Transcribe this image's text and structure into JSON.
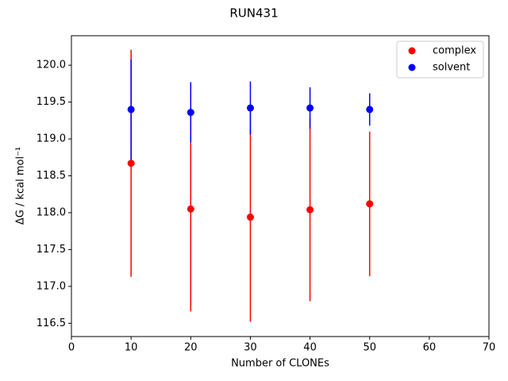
{
  "chart_data": {
    "type": "errorbar",
    "title": "RUN431",
    "xlabel": "Number of CLONEs",
    "ylabel": "ΔG / kcal mol⁻¹",
    "series": [
      {
        "name": "complex",
        "color": "#ff0000",
        "x": [
          10,
          20,
          30,
          40,
          50
        ],
        "values": [
          118.67,
          118.05,
          117.94,
          118.04,
          118.12
        ],
        "errors": [
          1.54,
          1.39,
          1.42,
          1.24,
          0.98
        ]
      },
      {
        "name": "solvent",
        "color": "#0000ff",
        "x": [
          10,
          20,
          30,
          40,
          50
        ],
        "values": [
          119.4,
          119.36,
          119.42,
          119.42,
          119.4
        ],
        "errors": [
          0.68,
          0.41,
          0.36,
          0.28,
          0.22
        ]
      }
    ],
    "xlim": [
      0,
      70
    ],
    "xticks": [
      0,
      10,
      20,
      30,
      40,
      50,
      60,
      70
    ],
    "ylim": [
      116.32,
      120.4
    ],
    "yticks": [
      116.5,
      {
        "value": 117,
        "label": "117.0"
      },
      117.5,
      {
        "value": 118,
        "label": "118.0"
      },
      118.5,
      {
        "value": 119,
        "label": "119.0"
      },
      119.5,
      {
        "value": 120,
        "label": "120.0"
      }
    ],
    "grid": false,
    "legend": "upper right"
  }
}
